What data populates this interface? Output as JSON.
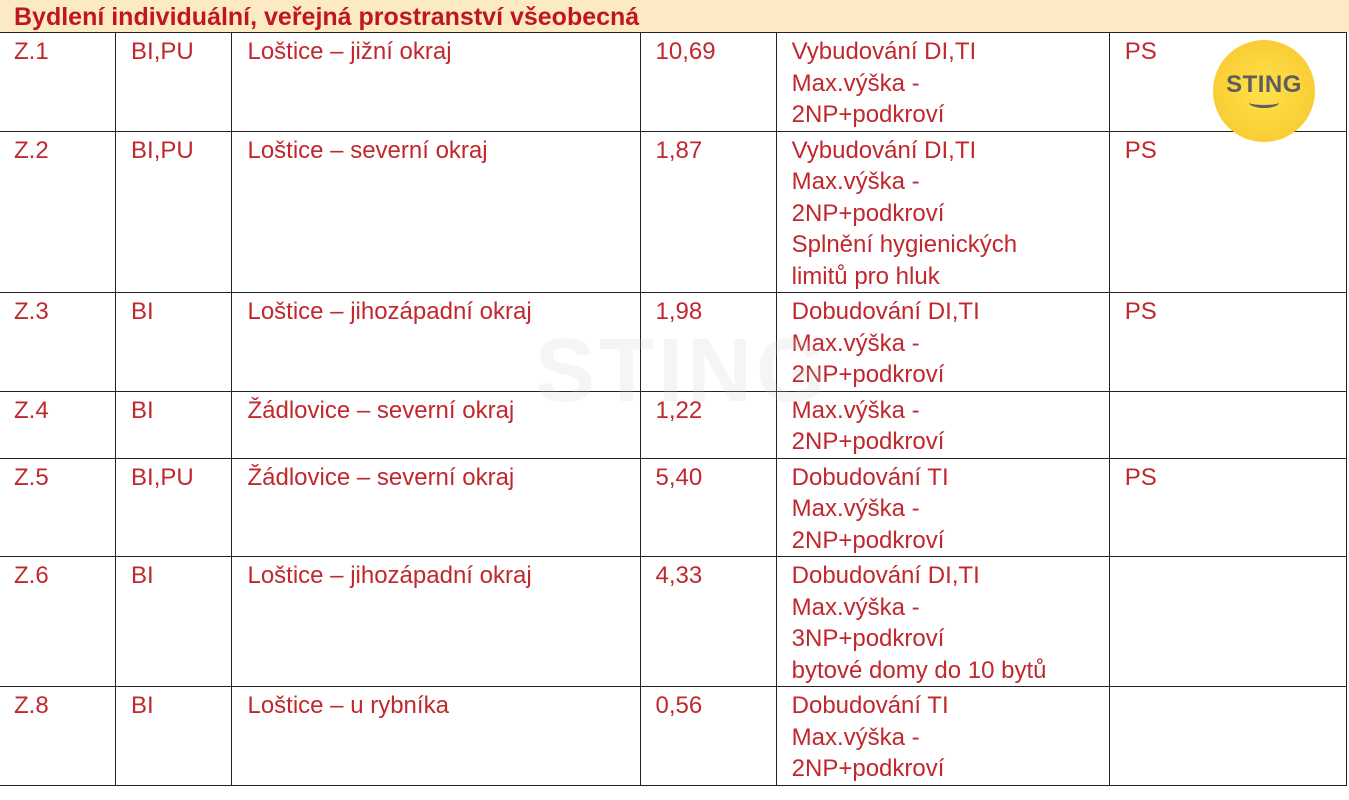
{
  "title": "Bydlení individuální, veřejná prostranství všeobecná",
  "rows": [
    {
      "id": "Z.1",
      "code": "BI,PU",
      "location": "Loštice – jižní okraj",
      "area": "10,69",
      "conditions": [
        "Vybudování DI,TI",
        "Max.výška -",
        "2NP+podkroví"
      ],
      "note": "PS"
    },
    {
      "id": "Z.2",
      "code": "BI,PU",
      "location": "Loštice – severní okraj",
      "area": "1,87",
      "conditions": [
        "Vybudování DI,TI",
        "Max.výška -",
        "2NP+podkroví",
        "Splnění hygienických",
        "limitů pro hluk"
      ],
      "note": "PS"
    },
    {
      "id": "Z.3",
      "code": "BI",
      "location": "Loštice – jihozápadní okraj",
      "area": "1,98",
      "conditions": [
        "Dobudování DI,TI",
        "Max.výška -",
        "2NP+podkroví"
      ],
      "note": "PS"
    },
    {
      "id": "Z.4",
      "code": "BI",
      "location": "Žádlovice – severní okraj",
      "area": "1,22",
      "conditions": [
        "Max.výška -",
        "2NP+podkroví"
      ],
      "note": ""
    },
    {
      "id": "Z.5",
      "code": "BI,PU",
      "location": "Žádlovice – severní okraj",
      "area": "5,40",
      "conditions": [
        "Dobudování TI",
        "Max.výška -",
        "2NP+podkroví"
      ],
      "note": "PS"
    },
    {
      "id": "Z.6",
      "code": "BI",
      "location": "Loštice – jihozápadní okraj",
      "area": "4,33",
      "conditions": [
        "Dobudování DI,TI",
        "Max.výška -",
        "3NP+podkroví",
        "bytové domy do 10 bytů"
      ],
      "note": ""
    },
    {
      "id": "Z.8",
      "code": "BI",
      "location": "Loštice – u rybníka",
      "area": "0,56",
      "conditions": [
        "Dobudování TI",
        "Max.výška -",
        "2NP+podkroví"
      ],
      "note": ""
    }
  ],
  "logo": {
    "text": "STING",
    "color": "#f7c52c"
  },
  "colors": {
    "text": "#c0282d",
    "title_bg": "#fbeac4"
  }
}
